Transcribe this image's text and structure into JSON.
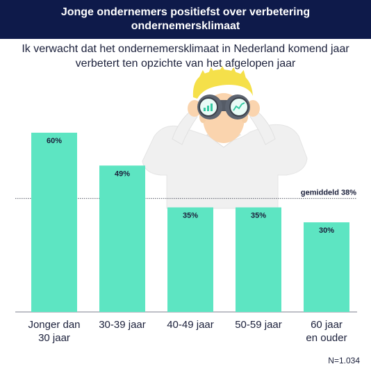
{
  "header": {
    "title": "Jonge ondernemers positiefst over verbetering ondernemersklimaat"
  },
  "subtitle": "Ik verwacht dat het ondernemersklimaat in Nederland komend jaar verbetert ten opzichte van het afgelopen jaar",
  "footnote": "N=1.034",
  "illustration": {
    "name": "businessman-with-binoculars-illustration"
  },
  "colors": {
    "bar": "#5de5c2",
    "header_bg": "#0e1a4a",
    "text": "#1a1f3a"
  },
  "chart_data": {
    "type": "bar",
    "categories": [
      [
        "Jonger dan",
        "30 jaar"
      ],
      [
        "30-39 jaar"
      ],
      [
        "40-49 jaar"
      ],
      [
        "50-59 jaar"
      ],
      [
        "60 jaar",
        "en ouder"
      ]
    ],
    "values": [
      60,
      49,
      35,
      35,
      30
    ],
    "value_labels": [
      "60%",
      "49%",
      "35%",
      "35%",
      "30%"
    ],
    "ylim": [
      0,
      100
    ],
    "reference_line": {
      "value": 38,
      "label": "gemiddeld 38%"
    },
    "grid": false,
    "legend": "none"
  }
}
